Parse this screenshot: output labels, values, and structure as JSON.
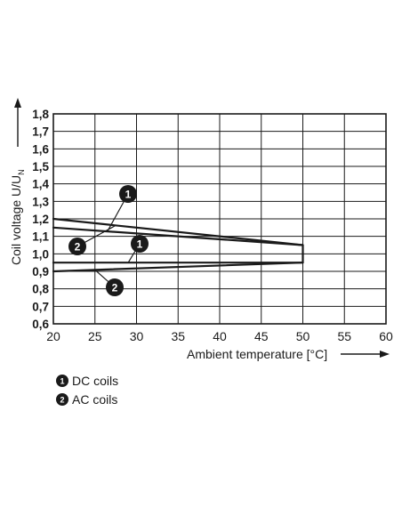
{
  "chart_data": {
    "type": "line",
    "xlabel": "Ambient temperature [°C]",
    "ylabel_main": "Coil voltage U/U",
    "ylabel_sub": "N",
    "xlim": [
      20,
      60
    ],
    "ylim": [
      0.6,
      1.8
    ],
    "xticks": [
      "20",
      "25",
      "30",
      "35",
      "40",
      "45",
      "50",
      "55",
      "60"
    ],
    "yticks": [
      "0,6",
      "0,7",
      "0,8",
      "0,9",
      "1,0",
      "1,1",
      "1,2",
      "1,3",
      "1,4",
      "1,5",
      "1,6",
      "1,7",
      "1,8"
    ],
    "grid": true,
    "series": [
      {
        "name": "DC coils",
        "marker": "1",
        "upper": [
          [
            20,
            1.15
          ],
          [
            50,
            1.05
          ]
        ],
        "lower": [
          [
            20,
            0.95
          ],
          [
            50,
            0.95
          ]
        ]
      },
      {
        "name": "AC coils",
        "marker": "2",
        "upper": [
          [
            20,
            1.2
          ],
          [
            50,
            1.05
          ]
        ],
        "lower": [
          [
            20,
            0.9
          ],
          [
            50,
            0.95
          ]
        ]
      }
    ],
    "legend": [
      {
        "marker": "1",
        "label": "DC coils"
      },
      {
        "marker": "2",
        "label": "AC coils"
      }
    ]
  }
}
